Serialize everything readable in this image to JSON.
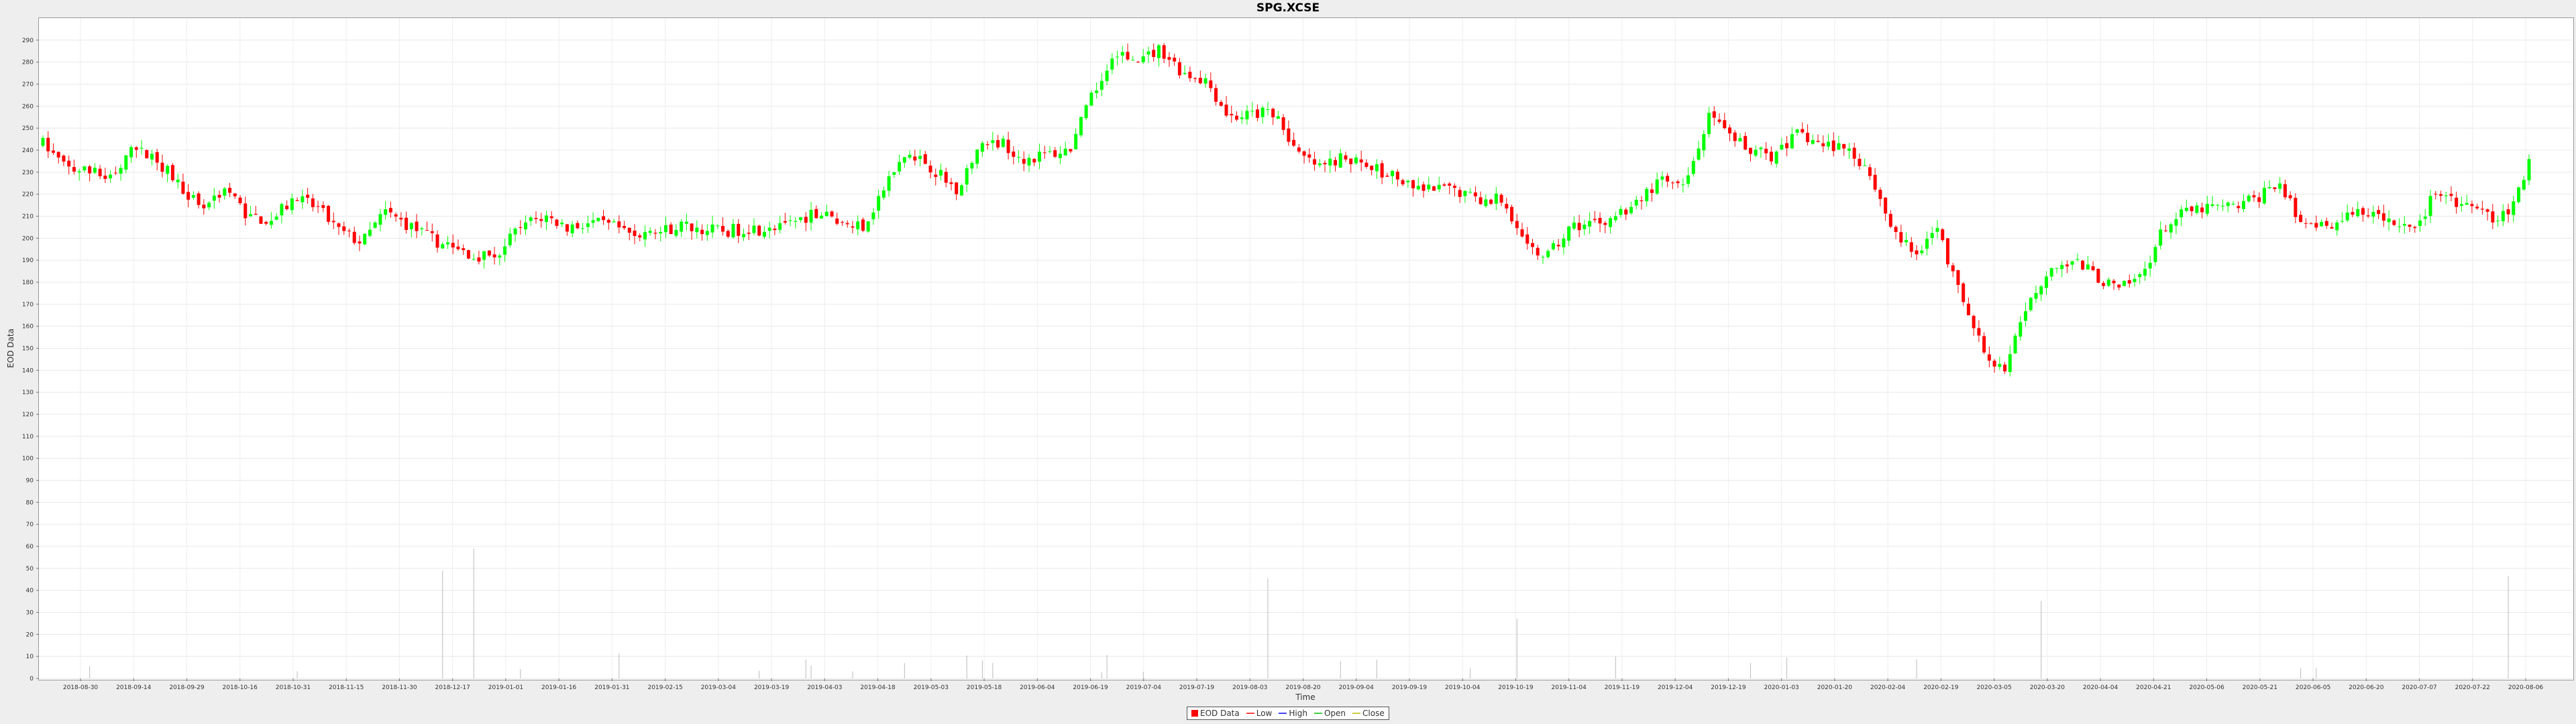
{
  "chart_data": {
    "type": "candlestick",
    "title": "SPG.XCSE",
    "xlabel": "Time",
    "ylabel": "EOD Data",
    "ylim": [
      0,
      300
    ],
    "y_ticks": [
      0,
      10,
      20,
      30,
      40,
      50,
      60,
      70,
      80,
      90,
      100,
      110,
      120,
      130,
      140,
      150,
      160,
      170,
      180,
      190,
      200,
      210,
      220,
      230,
      240,
      250,
      260,
      270,
      280,
      290
    ],
    "x_tick_labels": [
      "2018-08-30",
      "2018-09-14",
      "2018-09-29",
      "2018-10-16",
      "2018-10-31",
      "2018-11-15",
      "2018-11-30",
      "2018-12-17",
      "2019-01-01",
      "2019-01-16",
      "2019-01-31",
      "2019-02-15",
      "2019-03-04",
      "2019-03-19",
      "2019-04-03",
      "2019-04-18",
      "2019-05-03",
      "2019-05-18",
      "2019-06-04",
      "2019-06-19",
      "2019-07-04",
      "2019-07-19",
      "2019-08-03",
      "2019-08-20",
      "2019-09-04",
      "2019-09-19",
      "2019-10-04",
      "2019-10-19",
      "2019-11-04",
      "2019-11-19",
      "2019-12-04",
      "2019-12-19",
      "2020-01-03",
      "2020-01-20",
      "2020-02-04",
      "2020-02-19",
      "2020-03-05",
      "2020-03-20",
      "2020-04-04",
      "2020-04-21",
      "2020-05-06",
      "2020-05-21",
      "2020-06-05",
      "2020-06-20",
      "2020-07-07",
      "2020-07-22",
      "2020-08-06"
    ],
    "close_trend": [
      243,
      232,
      230,
      228,
      240,
      236,
      224,
      214,
      223,
      210,
      208,
      218,
      214,
      203,
      198,
      212,
      206,
      200,
      195,
      192,
      193,
      206,
      210,
      205,
      207,
      205,
      202,
      203,
      206,
      204,
      203,
      205,
      203,
      208,
      212,
      207,
      206,
      225,
      240,
      232,
      222,
      240,
      244,
      236,
      238,
      240,
      264,
      284,
      280,
      286,
      275,
      272,
      255,
      256,
      258,
      238,
      232,
      237,
      232,
      230,
      222,
      222,
      222,
      217,
      218,
      195,
      192,
      205,
      207,
      210,
      218,
      226,
      222,
      255,
      245,
      240,
      237,
      248,
      242,
      242,
      232,
      206,
      192,
      205,
      176,
      150,
      140,
      168,
      188,
      190,
      183,
      176,
      183,
      205,
      212,
      214,
      214,
      218,
      226,
      206,
      205,
      210,
      212,
      206,
      205,
      222,
      215,
      210,
      210,
      233
    ],
    "colors": {
      "up": "#00ff00",
      "down": "#ff0000",
      "volume": "#bbbbbb"
    },
    "legend": [
      {
        "label": "EOD Data",
        "kind": "box",
        "color": "#ff0000"
      },
      {
        "label": "Low",
        "kind": "line",
        "color": "#ff4444"
      },
      {
        "label": "High",
        "kind": "line",
        "color": "#4444ff"
      },
      {
        "label": "Open",
        "kind": "line",
        "color": "#44cc44"
      },
      {
        "label": "Close",
        "kind": "line",
        "color": "#cccc44"
      }
    ],
    "grid": true,
    "legend_position": "bottom-center"
  }
}
